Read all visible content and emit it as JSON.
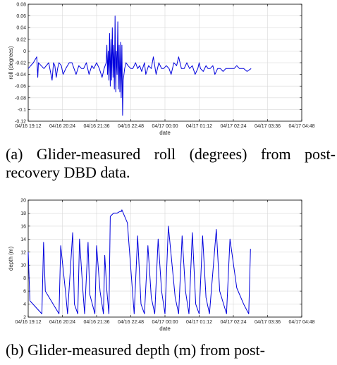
{
  "captions": {
    "a": "(a) Glider-measured roll (degrees) from post-recovery DBD data.",
    "b": "(b) Glider-measured depth (m) from post-"
  },
  "chart_data": [
    {
      "type": "line",
      "xlabel": "date",
      "ylabel": "roll (degrees)",
      "ylim": [
        -0.12,
        0.08
      ],
      "yticks": [
        "0.08",
        "0.06",
        "0.04",
        "0.02",
        "0",
        "-0.02",
        "-0.04",
        "-0.06",
        "-0.08",
        "-0.1",
        "-0.12"
      ],
      "xticks": [
        "04/16 19:12",
        "04/16 20:24",
        "04/16 21:36",
        "04/16 22:48",
        "04/17 00:00",
        "04/17 01:12",
        "04/17 02:24",
        "04/17 03:36",
        "04/17 04:48"
      ],
      "grid": true,
      "color": "#0000dd",
      "x": [
        0,
        0.15,
        0.25,
        0.28,
        0.3,
        0.38,
        0.46,
        0.6,
        0.7,
        0.74,
        0.78,
        0.82,
        0.86,
        0.9,
        0.97,
        1.02,
        1.1,
        1.2,
        1.28,
        1.34,
        1.4,
        1.48,
        1.56,
        1.62,
        1.7,
        1.78,
        1.86,
        1.92,
        2.0,
        2.08,
        2.16,
        2.22,
        2.28,
        2.3,
        2.32,
        2.34,
        2.36,
        2.38,
        2.4,
        2.42,
        2.44,
        2.46,
        2.48,
        2.5,
        2.52,
        2.54,
        2.56,
        2.58,
        2.6,
        2.62,
        2.64,
        2.66,
        2.68,
        2.7,
        2.72,
        2.74,
        2.76,
        2.78,
        2.82,
        2.86,
        2.92,
        3.0,
        3.06,
        3.14,
        3.2,
        3.26,
        3.32,
        3.4,
        3.44,
        3.52,
        3.6,
        3.66,
        3.74,
        3.82,
        3.9,
        3.96,
        4.04,
        4.12,
        4.18,
        4.26,
        4.34,
        4.4,
        4.48,
        4.56,
        4.64,
        4.72,
        4.8,
        4.88,
        4.96,
        5.0,
        5.04,
        5.12,
        5.2,
        5.26,
        5.32,
        5.4,
        5.46,
        5.54,
        5.62,
        5.7,
        5.78,
        5.86,
        5.94,
        6.02,
        6.1,
        6.18,
        6.3,
        6.4,
        6.52
      ],
      "values": [
        -0.03,
        -0.02,
        -0.01,
        -0.045,
        -0.02,
        -0.025,
        -0.03,
        -0.02,
        -0.05,
        -0.02,
        -0.025,
        -0.045,
        -0.03,
        -0.02,
        -0.025,
        -0.04,
        -0.03,
        -0.02,
        -0.02,
        -0.03,
        -0.04,
        -0.025,
        -0.03,
        -0.03,
        -0.02,
        -0.04,
        -0.025,
        -0.03,
        -0.02,
        -0.03,
        -0.045,
        -0.03,
        -0.02,
        0.01,
        -0.04,
        0.0,
        -0.05,
        0.03,
        -0.06,
        0.02,
        -0.05,
        0.04,
        -0.045,
        0.01,
        -0.065,
        0.06,
        -0.07,
        0.0,
        -0.04,
        0.05,
        -0.065,
        0.01,
        -0.07,
        0.015,
        -0.08,
        0.01,
        -0.11,
        -0.05,
        -0.03,
        -0.02,
        -0.025,
        -0.03,
        -0.03,
        -0.02,
        -0.03,
        -0.025,
        -0.035,
        -0.02,
        -0.04,
        -0.025,
        -0.03,
        -0.01,
        -0.04,
        -0.02,
        -0.03,
        -0.03,
        -0.025,
        -0.03,
        -0.04,
        -0.02,
        -0.025,
        -0.01,
        -0.03,
        -0.03,
        -0.02,
        -0.03,
        -0.025,
        -0.04,
        -0.03,
        -0.02,
        -0.03,
        -0.035,
        -0.025,
        -0.03,
        -0.03,
        -0.025,
        -0.04,
        -0.03,
        -0.03,
        -0.035,
        -0.03,
        -0.03,
        -0.03,
        -0.03,
        -0.025,
        -0.03,
        -0.03,
        -0.035,
        -0.03
      ]
    },
    {
      "type": "line",
      "xlabel": "date",
      "ylabel": "depth (m)",
      "ylim": [
        2,
        20
      ],
      "yticks": [
        "20",
        "18",
        "16",
        "14",
        "12",
        "10",
        "8",
        "6",
        "4",
        "2"
      ],
      "xticks": [
        "04/16 19:12",
        "04/16 20:24",
        "04/16 21:36",
        "04/16 22:48",
        "04/17 00:00",
        "04/17 01:12",
        "04/17 02:24",
        "04/17 03:36",
        "04/17 04:48"
      ],
      "grid": true,
      "color": "#0000dd",
      "x": [
        0.0,
        0.05,
        0.4,
        0.45,
        0.5,
        0.9,
        0.95,
        1.1,
        1.15,
        1.3,
        1.35,
        1.45,
        1.5,
        1.6,
        1.65,
        1.75,
        1.8,
        1.95,
        2.0,
        2.1,
        2.2,
        2.24,
        2.3,
        2.36,
        2.4,
        2.5,
        2.6,
        2.7,
        2.72,
        2.74,
        2.9,
        3.1,
        3.2,
        3.3,
        3.4,
        3.5,
        3.6,
        3.7,
        3.8,
        3.9,
        4.0,
        4.1,
        4.3,
        4.4,
        4.5,
        4.6,
        4.7,
        4.8,
        4.9,
        5.0,
        5.1,
        5.2,
        5.3,
        5.5,
        5.6,
        5.8,
        5.9,
        6.1,
        6.3,
        6.45,
        6.5
      ],
      "values": [
        12,
        4.5,
        2.5,
        13.5,
        6,
        2.5,
        13,
        5.5,
        2.5,
        15,
        4,
        2.5,
        14,
        6,
        2.5,
        13.5,
        5.5,
        2.5,
        13,
        6,
        2.5,
        11.5,
        6,
        2.5,
        17.5,
        18,
        18,
        18.3,
        18.2,
        18.5,
        16.5,
        2.5,
        14.5,
        4,
        2.5,
        13,
        5,
        2.5,
        14,
        6,
        2.5,
        16,
        5,
        2.5,
        14.5,
        6,
        2.5,
        15,
        4,
        2.5,
        14.5,
        5,
        2.5,
        15.5,
        6,
        2.5,
        14,
        6.5,
        4,
        2.5,
        12.5
      ]
    }
  ]
}
